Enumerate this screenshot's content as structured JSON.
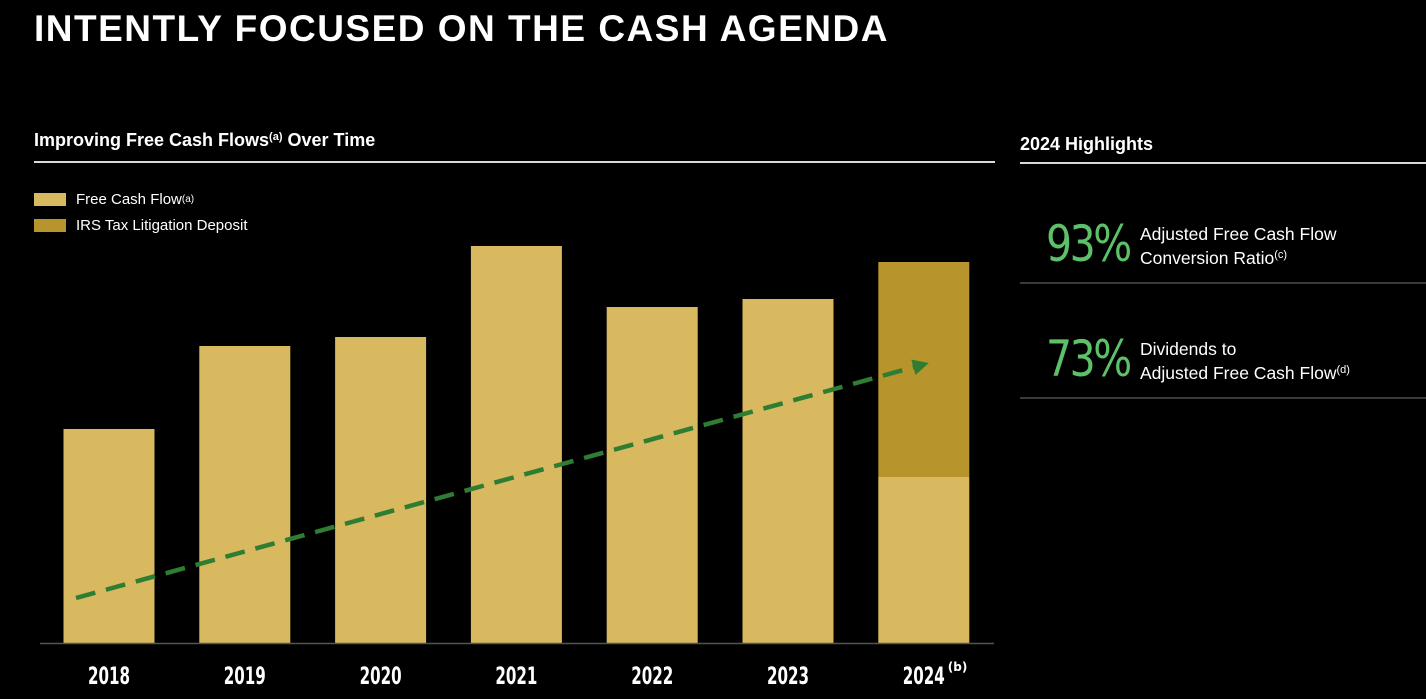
{
  "page": {
    "title": "INTENTLY FOCUSED ON THE CASH AGENDA"
  },
  "chart_section": {
    "title": "Improving Free Cash Flows",
    "title_note": "(a)",
    "title_suffix": " Over Time"
  },
  "legend": {
    "items": [
      {
        "label": "Free Cash Flow",
        "note": "(a)",
        "color": "#d8b95f"
      },
      {
        "label": "IRS Tax Litigation Deposit",
        "note": "",
        "color": "#b8952c"
      }
    ]
  },
  "chart_data": {
    "type": "bar",
    "stacked": true,
    "title": "Improving Free Cash Flows(a) Over Time",
    "xlabel": "",
    "ylabel": "",
    "yaxis_visible": false,
    "ylim": [
      0,
      400
    ],
    "categories": [
      "2018",
      "2019",
      "2020",
      "2021",
      "2022",
      "2023",
      "2024"
    ],
    "category_notes": [
      "",
      "",
      "",
      "",
      "",
      "",
      "(b)"
    ],
    "series": [
      {
        "name": "Free Cash Flow(a)",
        "color": "#d8b95f",
        "values": [
          214,
          297,
          306,
          397,
          336,
          344,
          166
        ]
      },
      {
        "name": "IRS Tax Litigation Deposit",
        "color": "#b8952c",
        "values": [
          0,
          0,
          0,
          0,
          0,
          0,
          215
        ]
      }
    ],
    "trend_arrow": {
      "style": "dashed",
      "color": "#2e7d32",
      "from": {
        "category": "2018",
        "value": 45
      },
      "to": {
        "category": "2024",
        "value": 280
      }
    }
  },
  "highlights": {
    "title": "2024 Highlights",
    "value_color": "#5cc168",
    "items": [
      {
        "value": "93%",
        "line1": "Adjusted Free Cash Flow",
        "line2": "Conversion Ratio",
        "note": "(c)"
      },
      {
        "value": "73%",
        "line1": "Dividends to",
        "line2": "Adjusted Free Cash Flow",
        "note": "(d)"
      }
    ]
  }
}
